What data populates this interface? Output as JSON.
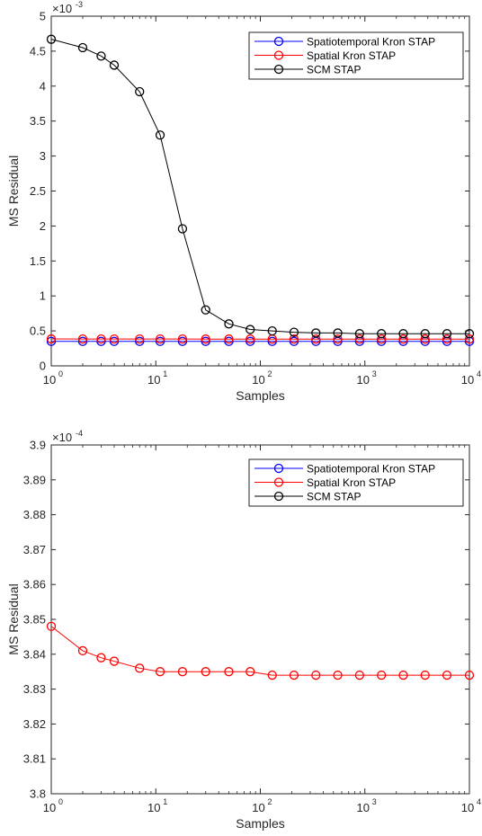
{
  "chart_data": [
    {
      "type": "line",
      "xscale": "log",
      "xlim": [
        1,
        10000
      ],
      "ylim": [
        0,
        0.005
      ],
      "xlabel": "Samples",
      "ylabel": "MS Residual",
      "x_ticks": [
        1,
        10,
        100,
        1000,
        10000
      ],
      "x_tick_labels": [
        {
          "base": "10",
          "exp": "0"
        },
        {
          "base": "10",
          "exp": "1"
        },
        {
          "base": "10",
          "exp": "2"
        },
        {
          "base": "10",
          "exp": "3"
        },
        {
          "base": "10",
          "exp": "4"
        }
      ],
      "y_ticks": [
        0,
        0.0005,
        0.001,
        0.0015,
        0.002,
        0.0025,
        0.003,
        0.0035,
        0.004,
        0.0045,
        0.005
      ],
      "y_tick_labels": [
        "0",
        "0.5",
        "1",
        "1.5",
        "2",
        "2.5",
        "3",
        "3.5",
        "4",
        "4.5",
        "5"
      ],
      "exponent_label": {
        "base": "×10",
        "exp": "-3"
      },
      "grid": false,
      "legend_position": "top-right",
      "series": [
        {
          "name": "Spatiotemporal Kron STAP",
          "color": "#0000ff",
          "x": [
            1,
            2,
            3,
            4,
            7,
            11,
            18,
            30,
            50,
            80,
            130,
            210,
            340,
            550,
            890,
            1440,
            2330,
            3770,
            6100,
            10000
          ],
          "y": [
            0.00035,
            0.00035,
            0.00035,
            0.00035,
            0.00035,
            0.00035,
            0.00035,
            0.00035,
            0.00035,
            0.00035,
            0.00035,
            0.00035,
            0.00035,
            0.00035,
            0.00035,
            0.00035,
            0.00035,
            0.00035,
            0.00035,
            0.00035
          ]
        },
        {
          "name": "Spatial Kron STAP",
          "color": "#ff0000",
          "x": [
            1,
            2,
            3,
            4,
            7,
            11,
            18,
            30,
            50,
            80,
            130,
            210,
            340,
            550,
            890,
            1440,
            2330,
            3770,
            6100,
            10000
          ],
          "y": [
            0.000385,
            0.000384,
            0.000384,
            0.000384,
            0.000384,
            0.000384,
            0.000384,
            0.000383,
            0.000383,
            0.000383,
            0.000383,
            0.000383,
            0.000383,
            0.000383,
            0.000383,
            0.000383,
            0.000383,
            0.000383,
            0.000383,
            0.000383
          ]
        },
        {
          "name": "SCM STAP",
          "color": "#000000",
          "x": [
            1,
            2,
            3,
            4,
            7,
            11,
            18,
            30,
            50,
            80,
            130,
            210,
            340,
            550,
            890,
            1440,
            2330,
            3770,
            6100,
            10000
          ],
          "y": [
            0.00467,
            0.00455,
            0.00443,
            0.0043,
            0.00392,
            0.0033,
            0.00196,
            0.0008,
            0.0006,
            0.00052,
            0.0005,
            0.00048,
            0.00047,
            0.00047,
            0.00046,
            0.00046,
            0.00046,
            0.00046,
            0.00046,
            0.00046
          ]
        }
      ]
    },
    {
      "type": "line",
      "xscale": "log",
      "xlim": [
        1,
        10000
      ],
      "ylim": [
        0.00038,
        0.00039
      ],
      "xlabel": "Samples",
      "ylabel": "MS Residual",
      "x_ticks": [
        1,
        10,
        100,
        1000,
        10000
      ],
      "x_tick_labels": [
        {
          "base": "10",
          "exp": "0"
        },
        {
          "base": "10",
          "exp": "1"
        },
        {
          "base": "10",
          "exp": "2"
        },
        {
          "base": "10",
          "exp": "3"
        },
        {
          "base": "10",
          "exp": "4"
        }
      ],
      "y_ticks": [
        0.00038,
        0.000381,
        0.000382,
        0.000383,
        0.000384,
        0.000385,
        0.000386,
        0.000387,
        0.000388,
        0.000389,
        0.00039
      ],
      "y_tick_labels": [
        "3.8",
        "3.81",
        "3.82",
        "3.83",
        "3.84",
        "3.85",
        "3.86",
        "3.87",
        "3.88",
        "3.89",
        "3.9"
      ],
      "exponent_label": {
        "base": "×10",
        "exp": "-4"
      },
      "grid": false,
      "legend_position": "top-right",
      "series": [
        {
          "name": "Spatiotemporal Kron STAP",
          "color": "#0000ff",
          "x": [],
          "y": []
        },
        {
          "name": "Spatial Kron STAP",
          "color": "#ff0000",
          "x": [
            1,
            2,
            3,
            4,
            7,
            11,
            18,
            30,
            50,
            80,
            130,
            210,
            340,
            550,
            890,
            1440,
            2330,
            3770,
            6100,
            10000
          ],
          "y": [
            0.0003848,
            0.0003841,
            0.0003839,
            0.0003838,
            0.0003836,
            0.0003835,
            0.0003835,
            0.0003835,
            0.0003835,
            0.0003835,
            0.0003834,
            0.0003834,
            0.0003834,
            0.0003834,
            0.0003834,
            0.0003834,
            0.0003834,
            0.0003834,
            0.0003834,
            0.0003834
          ]
        },
        {
          "name": "SCM STAP",
          "color": "#000000",
          "x": [],
          "y": []
        }
      ]
    }
  ]
}
